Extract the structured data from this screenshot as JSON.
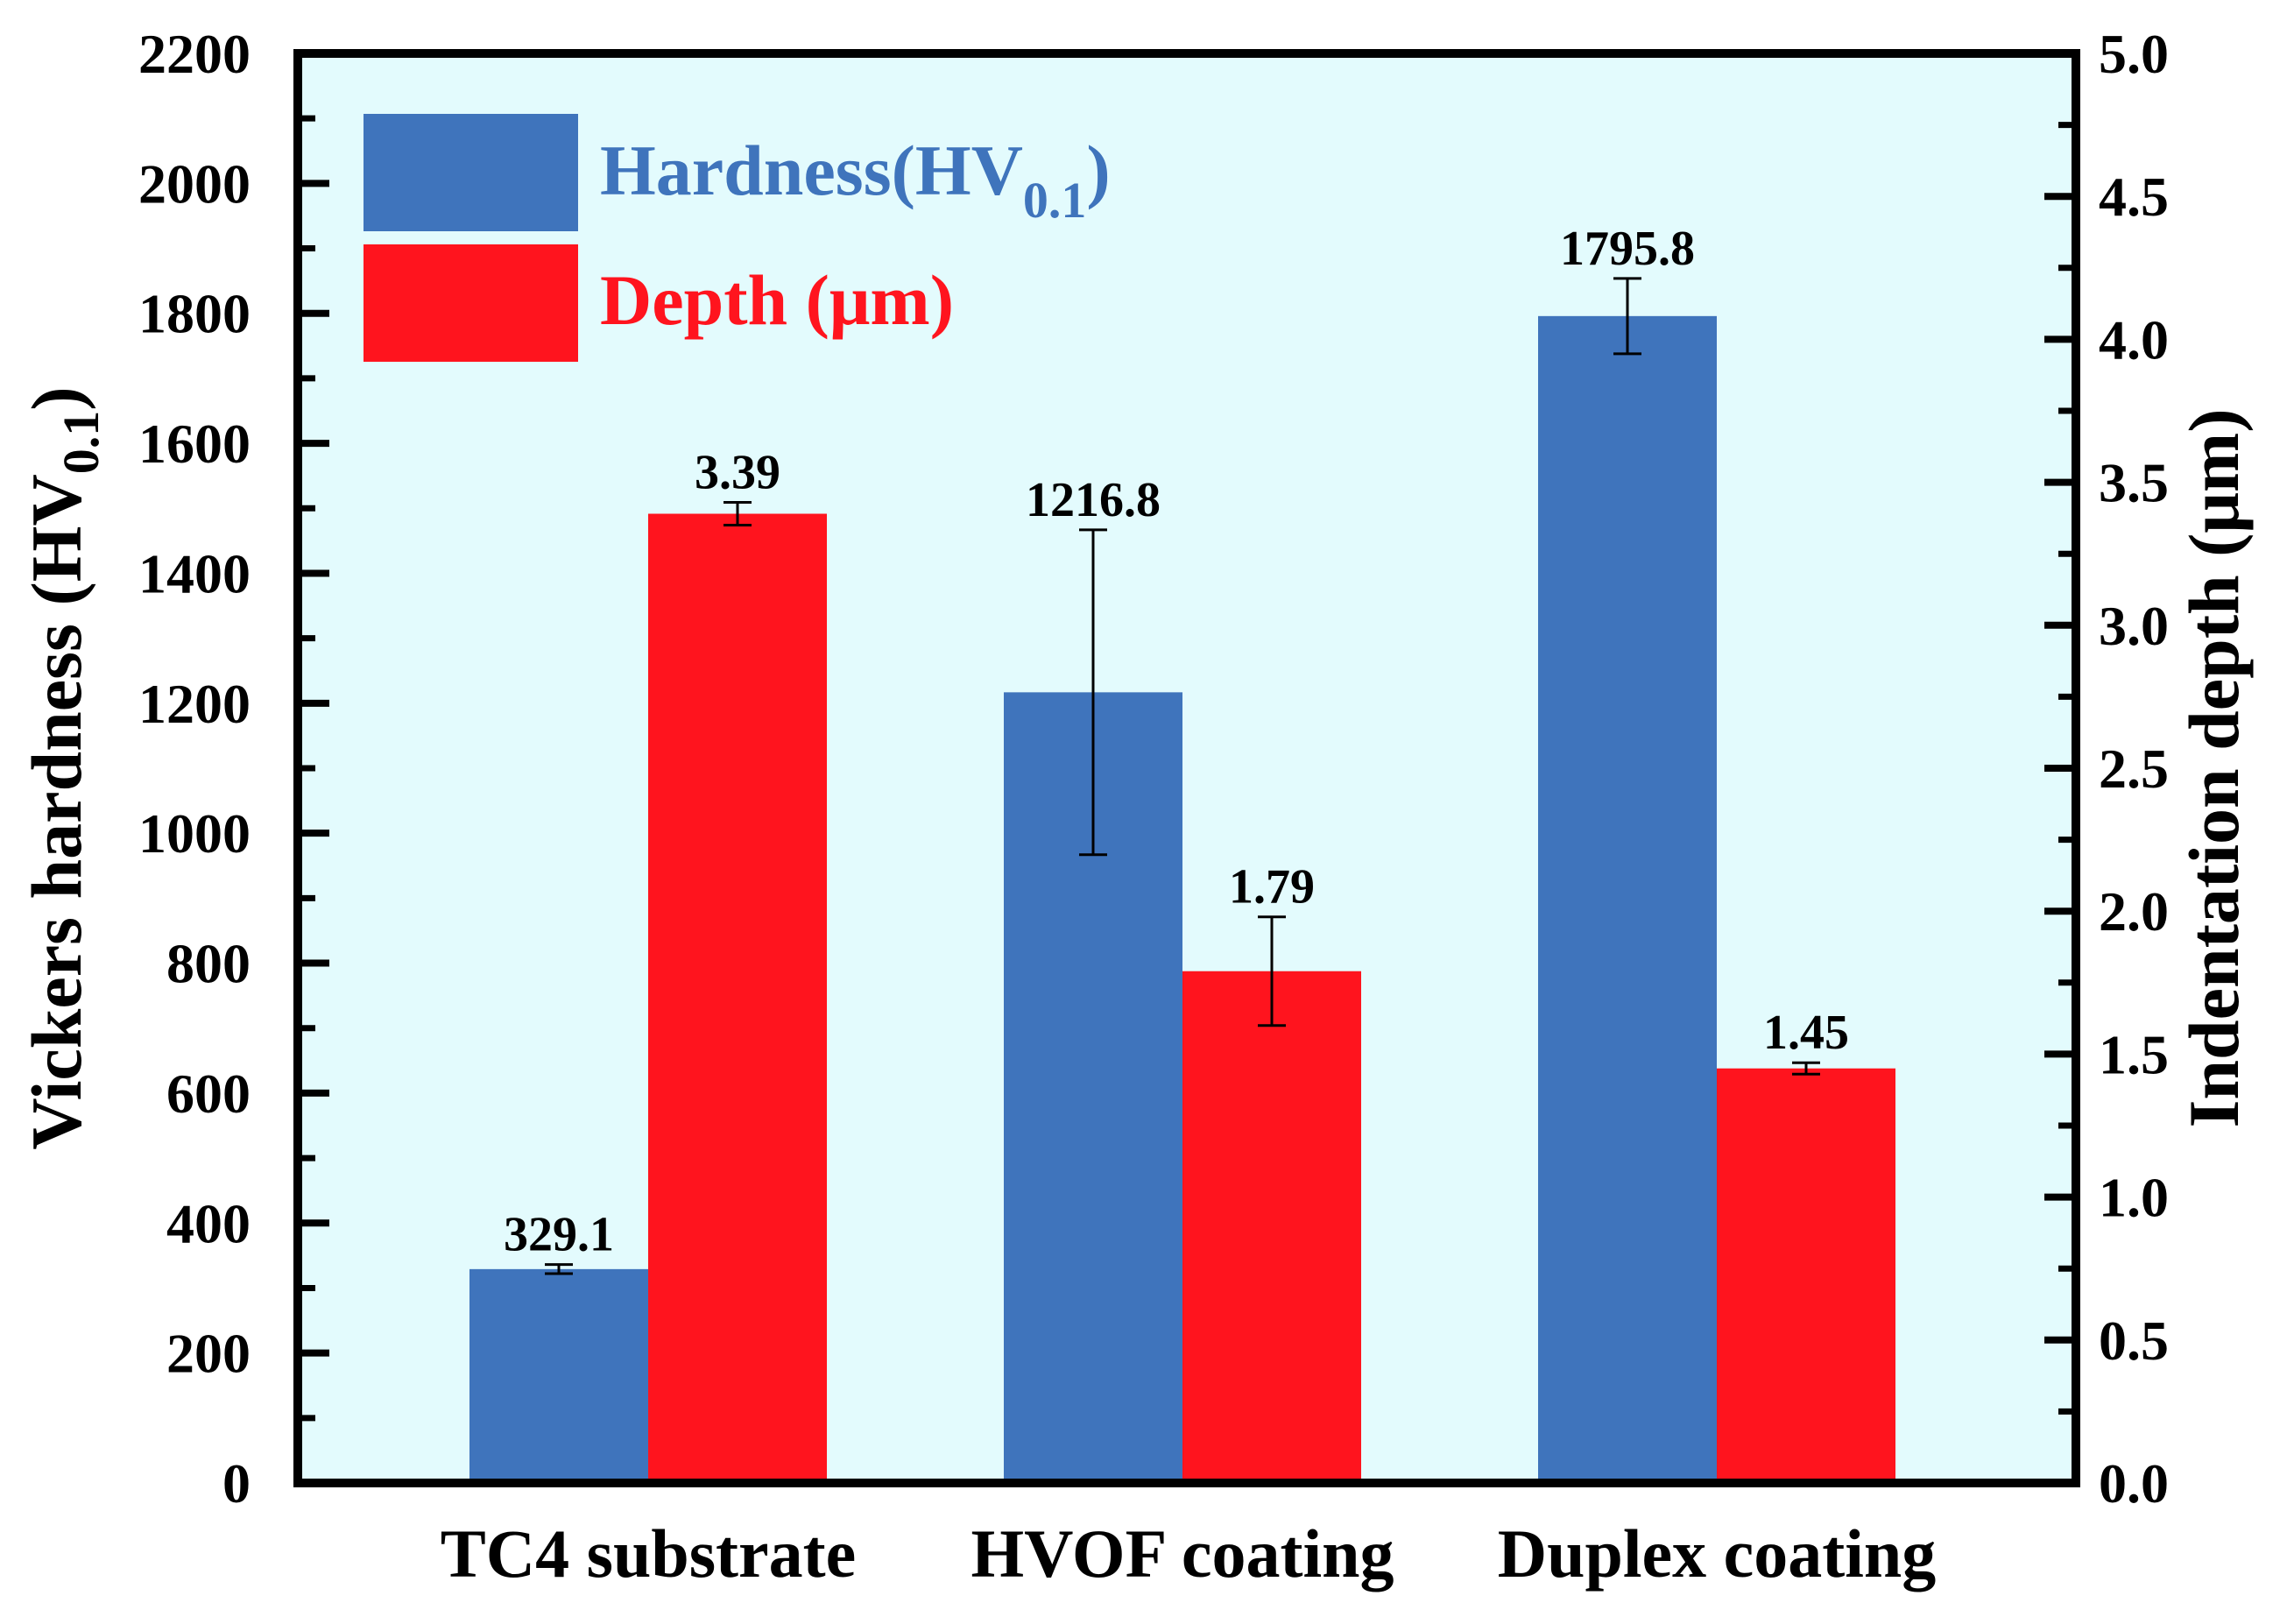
{
  "chart_data": {
    "type": "bar",
    "categories": [
      "TC4 substrate",
      "HVOF coating",
      "Duplex coating"
    ],
    "left_axis": {
      "label_main": "Vickers hardness (HV",
      "label_sub": "0.1",
      "label_end": ")",
      "ylim": [
        0,
        2200
      ],
      "ticks": [
        "0",
        "200",
        "400",
        "600",
        "800",
        "1000",
        "1200",
        "1400",
        "1600",
        "1800",
        "2000",
        "2200"
      ]
    },
    "right_axis": {
      "label": "Indentation depth (μm)",
      "ylim": [
        0,
        5.0
      ],
      "ticks": [
        "0.0",
        "0.5",
        "1.0",
        "1.5",
        "2.0",
        "2.5",
        "3.0",
        "3.5",
        "4.0",
        "4.5",
        "5.0"
      ]
    },
    "series": [
      {
        "name": "Hardness(HV0.1)",
        "legend_main": "Hardness(HV",
        "legend_sub": "0.1",
        "legend_end": ")",
        "axis": "left",
        "color": "#3f74bc",
        "values": [
          329.1,
          1216.8,
          1795.8
        ],
        "errors": [
          7,
          250,
          58
        ],
        "labels": [
          "329.1",
          "1216.8",
          "1795.8"
        ]
      },
      {
        "name": "Depth (μm)",
        "legend_main": "Depth (μm)",
        "axis": "right",
        "color": "#ff141e",
        "values": [
          3.39,
          1.79,
          1.45
        ],
        "errors": [
          0.04,
          0.19,
          0.02
        ],
        "labels": [
          "3.39",
          "1.79",
          "1.45"
        ]
      }
    ],
    "legend_position": "top-left",
    "plot_background": "#e3fbfd"
  }
}
